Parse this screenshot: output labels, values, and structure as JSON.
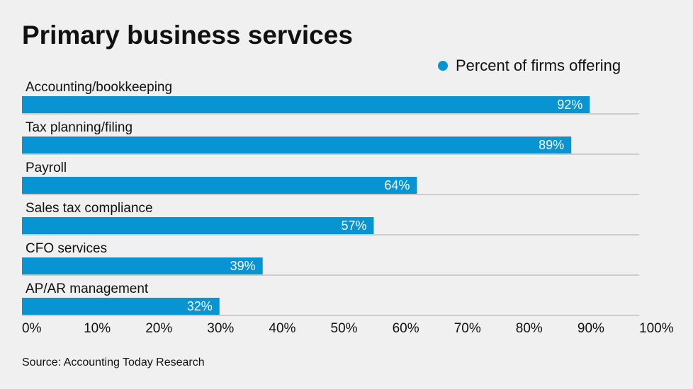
{
  "chart_data": {
    "type": "bar",
    "orientation": "horizontal",
    "title": "Primary business services",
    "categories": [
      "Accounting/bookkeeping",
      "Tax planning/filing",
      "Payroll",
      "Sales tax compliance",
      "CFO services",
      "AP/AR management"
    ],
    "series": [
      {
        "name": "Percent of firms offering",
        "color": "#0893d2",
        "values": [
          92,
          89,
          64,
          57,
          39,
          32
        ],
        "value_labels": [
          "92%",
          "89%",
          "64%",
          "57%",
          "39%",
          "32%"
        ]
      }
    ],
    "xlim": [
      0,
      100
    ],
    "xticks": [
      {
        "value": 0,
        "label": "0%"
      },
      {
        "value": 10,
        "label": "10%"
      },
      {
        "value": 20,
        "label": "20%"
      },
      {
        "value": 30,
        "label": "30%"
      },
      {
        "value": 40,
        "label": "40%"
      },
      {
        "value": 50,
        "label": "50%"
      },
      {
        "value": 60,
        "label": "60%"
      },
      {
        "value": 70,
        "label": "70%"
      },
      {
        "value": 80,
        "label": "80%"
      },
      {
        "value": 90,
        "label": "90%"
      },
      {
        "value": 100,
        "label": "100%"
      }
    ],
    "legend": "top-right",
    "source": "Source: Accounting Today Research"
  }
}
